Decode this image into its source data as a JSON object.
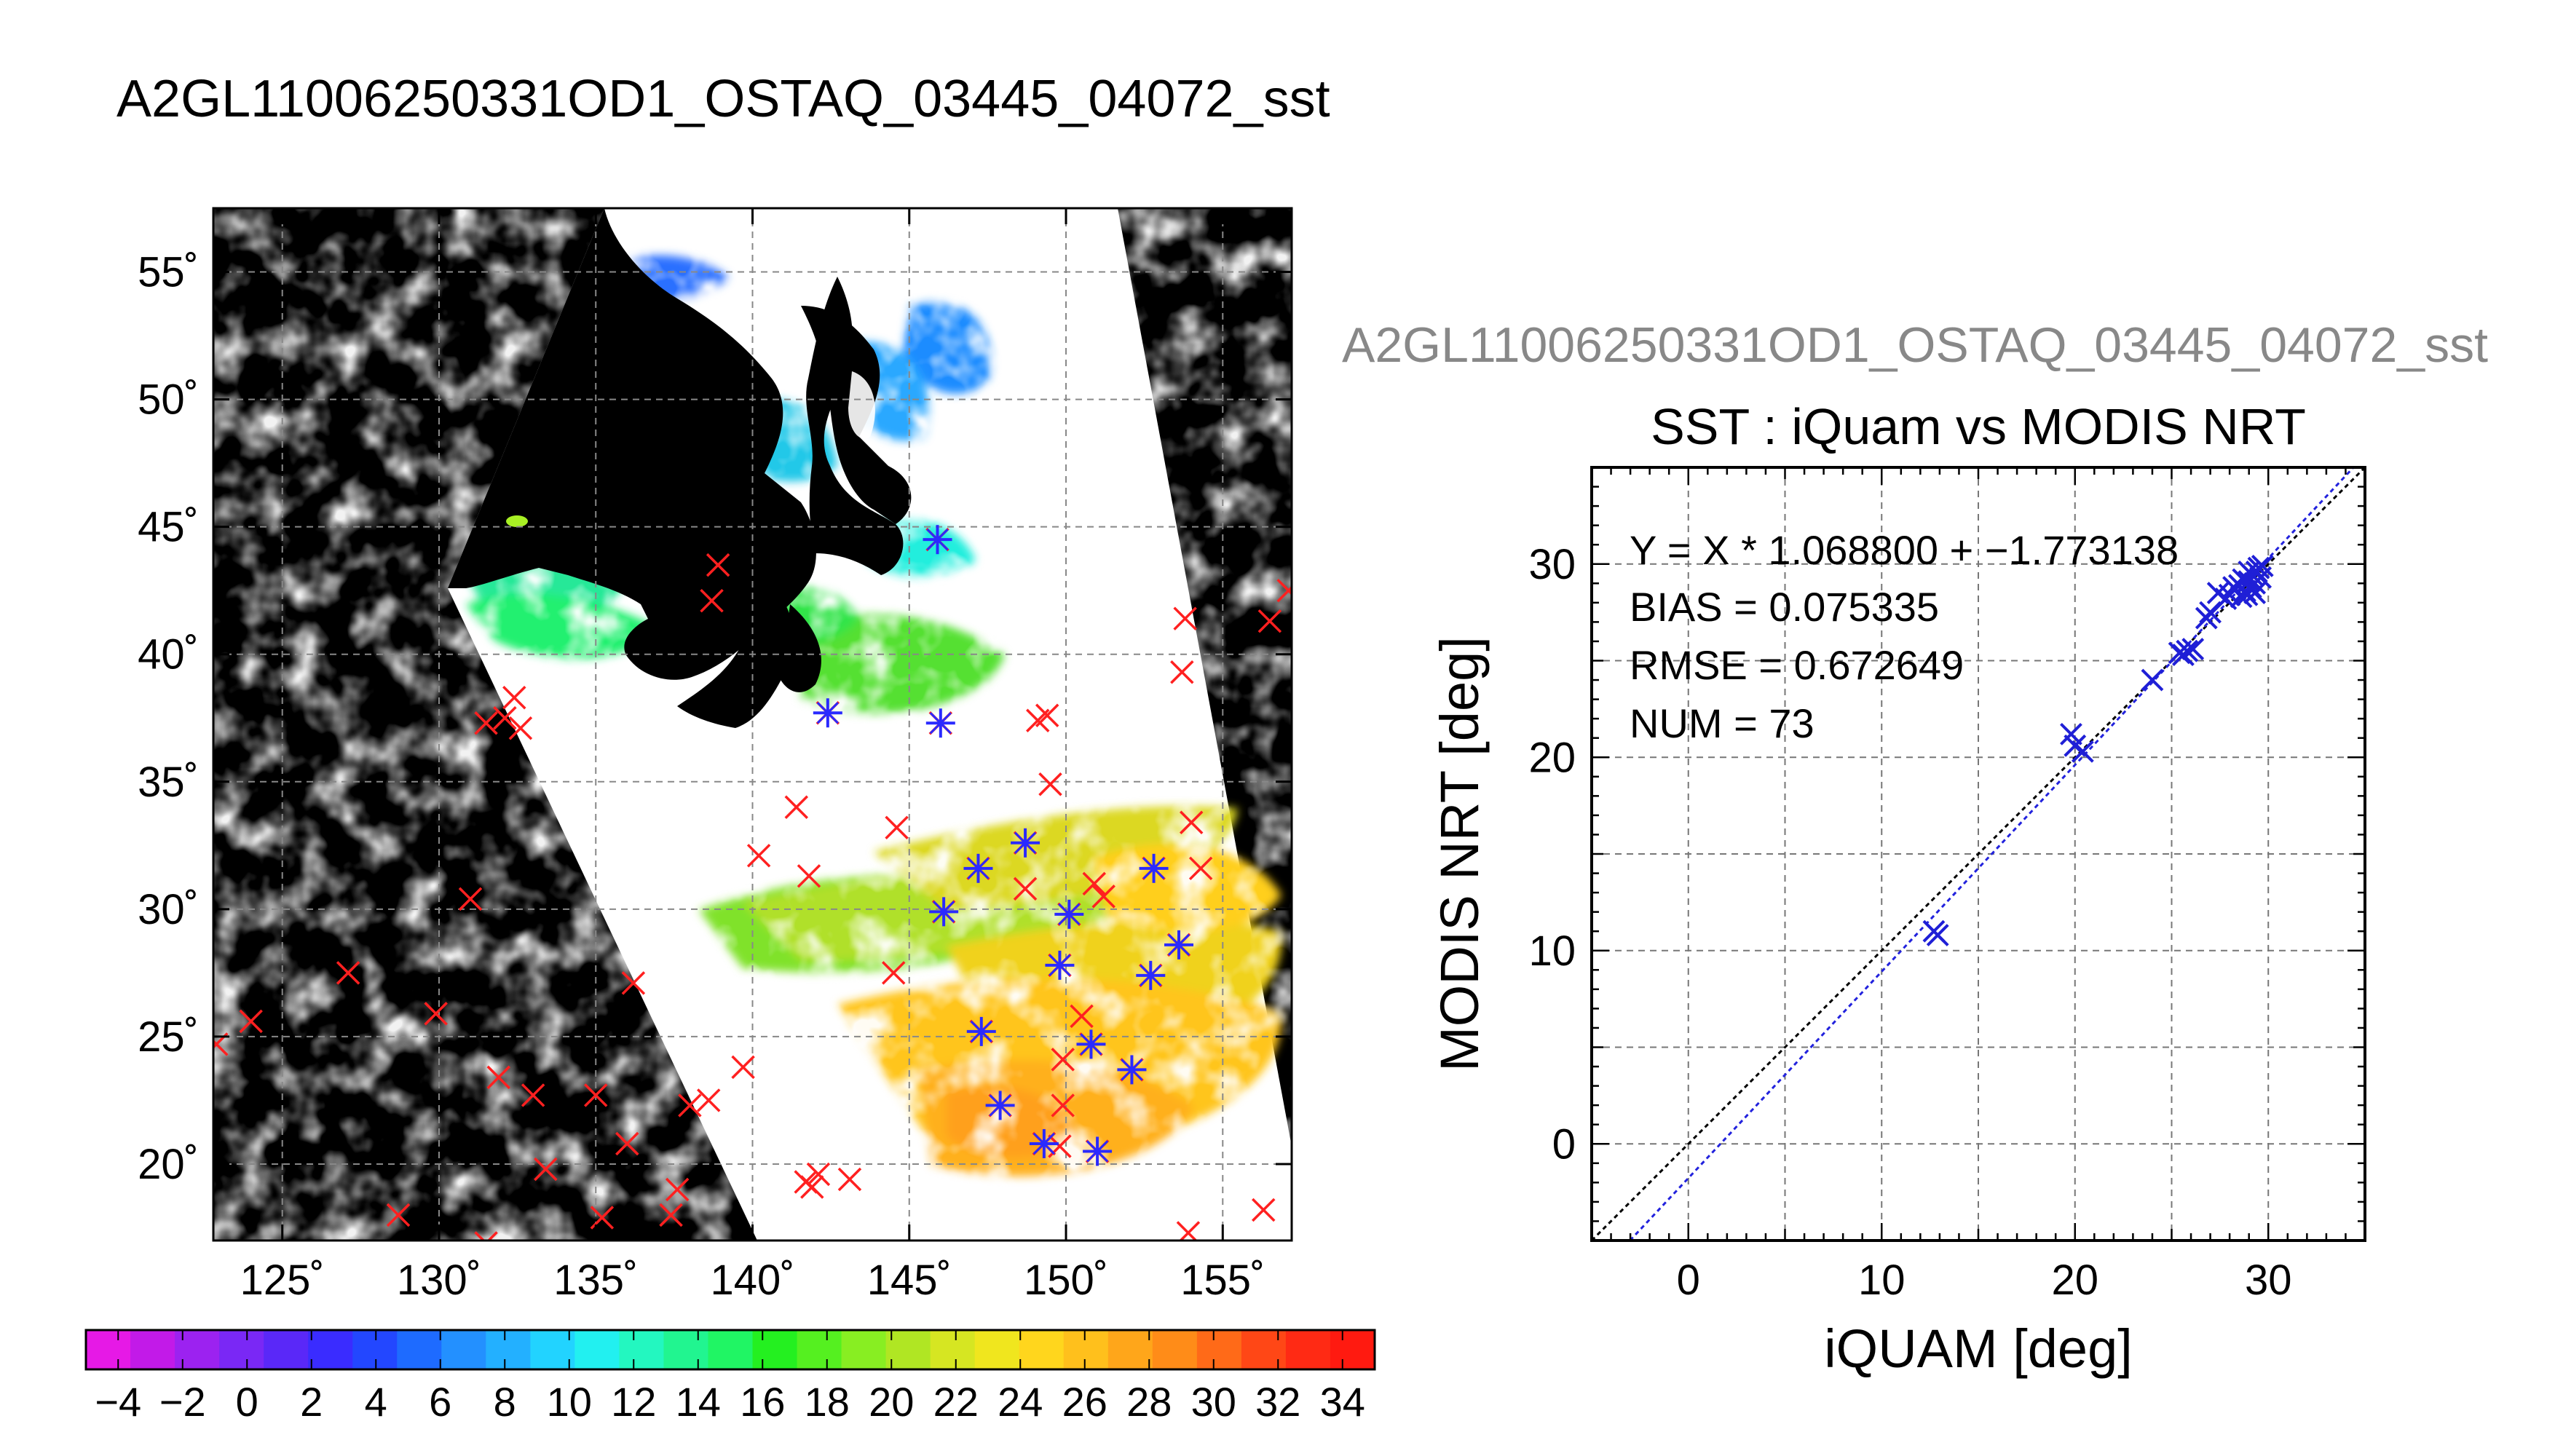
{
  "page_title": "A2GL11006250331OD1_OSTAQ_03445_04072_sst",
  "chart_data": [
    {
      "type": "map",
      "title": "A2GL11006250331OD1_OSTAQ_03445_04072_sst",
      "lon_ticks": [
        "125˚",
        "130˚",
        "135˚",
        "140˚",
        "145˚",
        "150˚",
        "155˚"
      ],
      "lat_ticks": [
        "55˚",
        "50˚",
        "45˚",
        "40˚",
        "35˚",
        "30˚",
        "25˚",
        "20˚"
      ],
      "lon_range": [
        122.8,
        157.2
      ],
      "lat_range": [
        17.0,
        57.5
      ],
      "grid": true,
      "background_color": "#000000",
      "swath_color": "#ffffff",
      "marker_red": "#ff2020",
      "marker_blue": "#2a2aff",
      "matchup_points_lonlat": [
        [
          145.9,
          44.5
        ],
        [
          142.4,
          37.7
        ],
        [
          146.0,
          37.3
        ],
        [
          147.2,
          31.6
        ],
        [
          148.7,
          32.6
        ],
        [
          146.1,
          29.9
        ],
        [
          150.1,
          29.8
        ],
        [
          152.8,
          31.6
        ],
        [
          153.6,
          28.6
        ],
        [
          152.7,
          27.4
        ],
        [
          149.8,
          27.8
        ],
        [
          147.3,
          25.2
        ],
        [
          150.8,
          24.7
        ],
        [
          152.1,
          23.7
        ],
        [
          147.9,
          22.3
        ],
        [
          149.3,
          20.8
        ],
        [
          151.0,
          20.5
        ]
      ],
      "surface_points_lonlat": [
        [
          138.9,
          43.5
        ],
        [
          138.7,
          42.1
        ],
        [
          132.4,
          38.3
        ],
        [
          132.1,
          37.5
        ],
        [
          131.5,
          37.3
        ],
        [
          132.6,
          37.1
        ],
        [
          149.4,
          37.6
        ],
        [
          149.1,
          37.4
        ],
        [
          149.5,
          34.9
        ],
        [
          141.4,
          34.0
        ],
        [
          140.2,
          32.1
        ],
        [
          141.8,
          31.3
        ],
        [
          144.6,
          33.2
        ],
        [
          148.7,
          30.8
        ],
        [
          150.9,
          31.0
        ],
        [
          131.0,
          30.4
        ],
        [
          154.3,
          31.6
        ],
        [
          154.0,
          33.4
        ],
        [
          153.8,
          41.4
        ],
        [
          153.7,
          39.3
        ],
        [
          157.1,
          42.5
        ],
        [
          156.5,
          41.3
        ],
        [
          127.1,
          27.5
        ],
        [
          124.0,
          25.6
        ],
        [
          122.9,
          24.7
        ],
        [
          129.9,
          25.9
        ],
        [
          136.2,
          27.1
        ],
        [
          139.7,
          23.8
        ],
        [
          138.6,
          22.5
        ],
        [
          138.0,
          22.3
        ],
        [
          136.0,
          20.8
        ],
        [
          135.0,
          22.7
        ],
        [
          133.0,
          22.7
        ],
        [
          131.9,
          23.4
        ],
        [
          133.4,
          19.8
        ],
        [
          128.7,
          18.0
        ],
        [
          131.5,
          16.9
        ],
        [
          135.2,
          17.9
        ],
        [
          137.4,
          18.0
        ],
        [
          137.6,
          19.0
        ],
        [
          141.7,
          19.3
        ],
        [
          142.1,
          19.6
        ],
        [
          141.9,
          19.1
        ],
        [
          143.1,
          19.4
        ],
        [
          144.5,
          27.5
        ],
        [
          149.9,
          24.1
        ],
        [
          149.9,
          22.3
        ],
        [
          149.8,
          20.7
        ],
        [
          150.5,
          25.8
        ],
        [
          151.2,
          30.5
        ],
        [
          153.9,
          17.3
        ],
        [
          156.3,
          18.2
        ]
      ]
    },
    {
      "type": "colorbar",
      "tick_labels": [
        "−4",
        "−2",
        "0",
        "2",
        "4",
        "6",
        "8",
        "10",
        "12",
        "14",
        "16",
        "18",
        "20",
        "22",
        "24",
        "26",
        "28",
        "30",
        "32",
        "34"
      ],
      "range": [
        -5,
        35
      ],
      "colors": [
        "#e619e6",
        "#c21ae8",
        "#9c22f0",
        "#7a28f5",
        "#5a28f8",
        "#3a2cff",
        "#2347ff",
        "#1e6bff",
        "#2390ff",
        "#23b0ff",
        "#22d3ff",
        "#22f0f0",
        "#23f7c0",
        "#21f590",
        "#20f564",
        "#24f020",
        "#55f020",
        "#88ee22",
        "#b0e623",
        "#d6e622",
        "#f0e61e",
        "#ffd61d",
        "#ffc01c",
        "#ffa61a",
        "#ff8c18",
        "#ff6a18",
        "#ff4716",
        "#ff2a14",
        "#ff1a10"
      ]
    },
    {
      "type": "scatter",
      "header_title": "A2GL11006250331OD1_OSTAQ_03445_04072_sst",
      "title": "SST : iQuam vs MODIS NRT",
      "xlabel": "iQUAM [deg]",
      "ylabel": "MODIS NRT [deg]",
      "xlim": [
        -5,
        35
      ],
      "ylim": [
        -5,
        35
      ],
      "x_ticks": [
        "0",
        "10",
        "20",
        "30"
      ],
      "y_ticks": [
        "0",
        "10",
        "20",
        "30"
      ],
      "grid": true,
      "annotations": [
        "Y = X * 1.068800 + −1.773138",
        "BIAS = 0.075335",
        "RMSE = 0.672649",
        "NUM = 73"
      ],
      "fit": {
        "slope": 1.0688,
        "intercept": -1.773138,
        "color": "#2222dd"
      },
      "identity_line_color": "#000000",
      "marker_color": "#1f1fd6",
      "points": [
        [
          12.7,
          11.0
        ],
        [
          12.9,
          10.8
        ],
        [
          19.8,
          21.2
        ],
        [
          20.0,
          20.6
        ],
        [
          20.4,
          20.3
        ],
        [
          24.0,
          24.0
        ],
        [
          25.4,
          25.4
        ],
        [
          25.8,
          25.5
        ],
        [
          26.1,
          25.6
        ],
        [
          25.6,
          25.3
        ],
        [
          26.8,
          27.2
        ],
        [
          27.0,
          27.5
        ],
        [
          27.4,
          28.5
        ],
        [
          27.8,
          28.2
        ],
        [
          28.0,
          28.4
        ],
        [
          28.3,
          28.7
        ],
        [
          28.5,
          28.9
        ],
        [
          28.6,
          28.3
        ],
        [
          28.8,
          28.6
        ],
        [
          29.0,
          29.1
        ],
        [
          29.1,
          28.8
        ],
        [
          29.2,
          29.4
        ],
        [
          29.3,
          28.5
        ],
        [
          29.4,
          29.6
        ],
        [
          29.5,
          29.8
        ],
        [
          29.6,
          29.3
        ],
        [
          29.7,
          29.9
        ],
        [
          28.7,
          29.2
        ],
        [
          28.9,
          28.4
        ],
        [
          29.0,
          29.6
        ],
        [
          28.2,
          28.8
        ],
        [
          29.3,
          29.0
        ]
      ]
    }
  ]
}
